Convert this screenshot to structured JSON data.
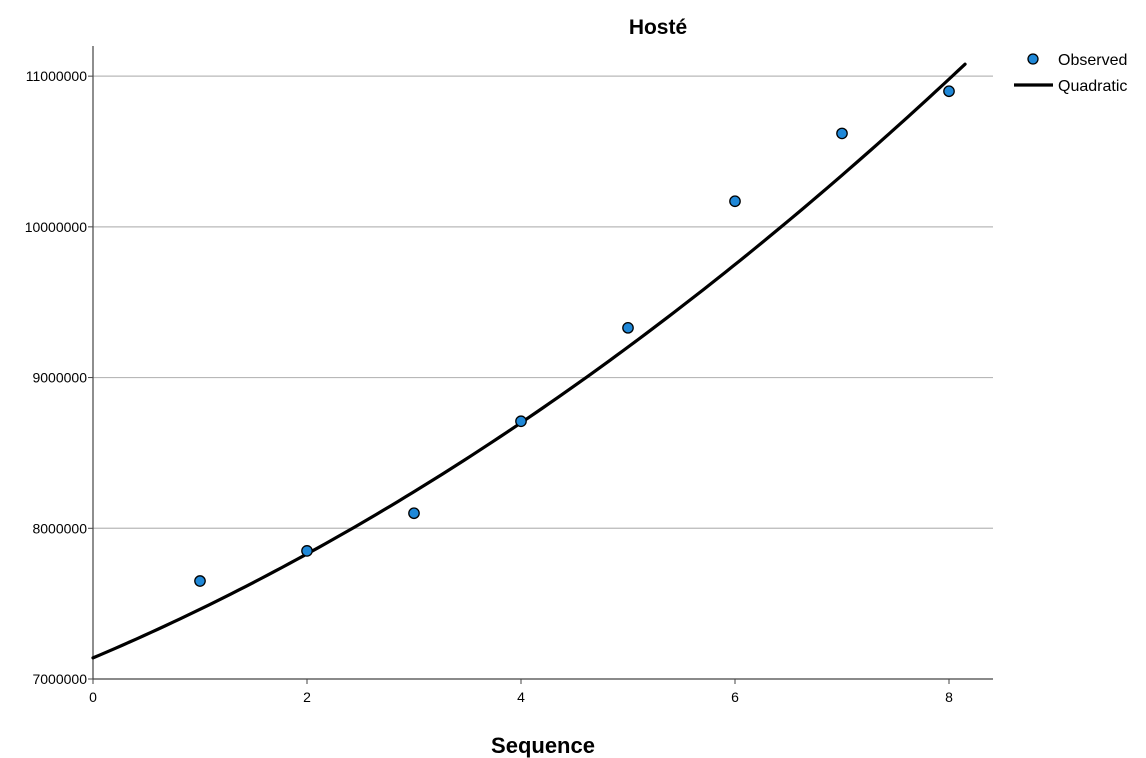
{
  "chart_data": {
    "type": "scatter",
    "title": "Hosté",
    "xlabel": "Sequence",
    "ylabel": "",
    "xlim": [
      0,
      8.4
    ],
    "ylim": [
      7000000,
      11200000
    ],
    "x_ticks": [
      0,
      2,
      4,
      6,
      8
    ],
    "x_tick_labels": [
      "0",
      "2",
      "4",
      "6",
      "8"
    ],
    "y_ticks": [
      7000000,
      8000000,
      9000000,
      10000000,
      11000000
    ],
    "y_tick_labels": [
      "7000000",
      "8000000",
      "9000000",
      "10000000",
      "11000000"
    ],
    "grid": "horizontal",
    "legend_position": "top-right",
    "series": [
      {
        "name": "Observed",
        "kind": "points",
        "x": [
          1,
          2,
          3,
          4,
          5,
          6,
          7,
          8
        ],
        "y": [
          7650000,
          7850000,
          8100000,
          8710000,
          9330000,
          10170000,
          10620000,
          10900000
        ]
      },
      {
        "name": "Quadratic",
        "kind": "fit-line",
        "x_range": [
          0,
          8.15
        ],
        "coefficients": [
          7140000,
          300000,
          22500
        ]
      }
    ]
  },
  "colors": {
    "point_fill": "#1f88d8",
    "point_stroke": "#000000",
    "fit_line": "#000000",
    "gridline": "#b8b8b8",
    "axis": "#444444"
  }
}
